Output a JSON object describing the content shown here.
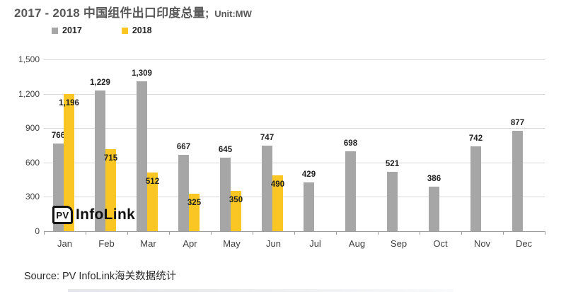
{
  "title": {
    "main": "2017 - 2018 中国组件出口印度总量;",
    "unit": "Unit:MW"
  },
  "legend": [
    {
      "label": "2017",
      "color": "#A6A6A6"
    },
    {
      "label": "2018",
      "color": "#F9C623"
    }
  ],
  "logo": {
    "pv": "PV",
    "name": "InfoLink"
  },
  "source": "Source: PV InfoLink海关数据统计",
  "chart_data": {
    "type": "bar",
    "title": "2017 - 2018 中国组件出口印度总量; Unit:MW",
    "categories": [
      "Jan",
      "Feb",
      "Mar",
      "Apr",
      "May",
      "Jun",
      "Jul",
      "Aug",
      "Sep",
      "Oct",
      "Nov",
      "Dec"
    ],
    "series": [
      {
        "name": "2017",
        "color": "#A6A6A6",
        "values": [
          766,
          1229,
          1309,
          667,
          645,
          747,
          429,
          698,
          521,
          386,
          742,
          877
        ]
      },
      {
        "name": "2018",
        "color": "#F9C623",
        "values": [
          1196,
          715,
          512,
          325,
          350,
          490,
          null,
          null,
          null,
          null,
          null,
          null
        ]
      }
    ],
    "xlabel": "",
    "ylabel": "",
    "ylim": [
      0,
      1500
    ],
    "ytick_step": 300,
    "yticks": [
      "0",
      "300",
      "600",
      "900",
      "1,200",
      "1,500"
    ],
    "grid": true,
    "legend_position": "top-left",
    "value_labels": "2017 above bars, 2018 inside bar tops",
    "unit": "MW"
  }
}
